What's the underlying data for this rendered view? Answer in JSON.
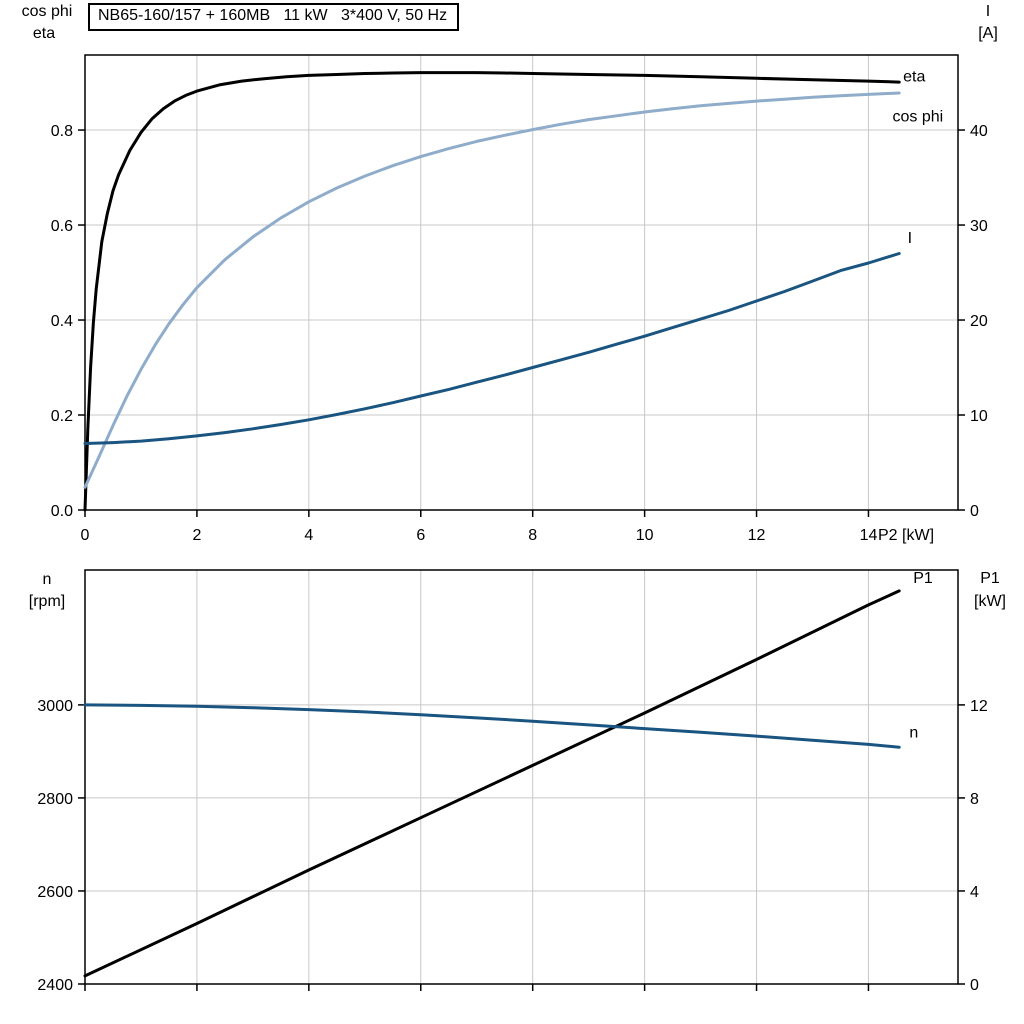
{
  "title_box": {
    "text": "NB65-160/157 + 160MB   11 kW   3*400 V, 50 Hz"
  },
  "colors": {
    "background": "#ffffff",
    "grid": "#c8c8c8",
    "axis": "#000000",
    "eta": "#000000",
    "cos_phi": "#8faccb",
    "current": "#1a5480",
    "p1": "#000000",
    "n": "#1a5480"
  },
  "chart_data": [
    {
      "type": "line",
      "name": "efficiency-cosphi-current",
      "title": "NB65-160/157 + 160MB   11 kW   3*400 V, 50 Hz",
      "x_axis": {
        "label": "P2 [kW]",
        "range": [
          0,
          15.6
        ],
        "tick_values": [
          0,
          2,
          4,
          6,
          8,
          10,
          12,
          14
        ],
        "tick_labels": [
          "0",
          "2",
          "4",
          "6",
          "8",
          "10",
          "12",
          "14"
        ],
        "show_tick_labels": true
      },
      "left_axis": {
        "title_lines": [
          "cos phi",
          "eta"
        ],
        "range": [
          0,
          0.958
        ],
        "tick_values": [
          0,
          0.2,
          0.4,
          0.6,
          0.8
        ],
        "tick_labels": [
          "0.0",
          "0.2",
          "0.4",
          "0.6",
          "0.8"
        ]
      },
      "right_axis": {
        "title_lines": [
          "I",
          "[A]"
        ],
        "range": [
          0,
          47.9
        ],
        "tick_values": [
          0,
          10,
          20,
          30,
          40
        ],
        "tick_labels": [
          "0",
          "10",
          "20",
          "30",
          "40"
        ]
      },
      "grid": true,
      "series": [
        {
          "name": "eta",
          "axis": "left",
          "color": "#000000",
          "label": {
            "text": "eta",
            "x": 14.62,
            "y": 0.902
          },
          "points": [
            [
              0,
              0
            ],
            [
              0.05,
              0.17
            ],
            [
              0.1,
              0.3
            ],
            [
              0.15,
              0.395
            ],
            [
              0.2,
              0.465
            ],
            [
              0.3,
              0.565
            ],
            [
              0.4,
              0.625
            ],
            [
              0.5,
              0.672
            ],
            [
              0.6,
              0.706
            ],
            [
              0.8,
              0.757
            ],
            [
              1.0,
              0.795
            ],
            [
              1.2,
              0.824
            ],
            [
              1.4,
              0.845
            ],
            [
              1.6,
              0.861
            ],
            [
              1.8,
              0.873
            ],
            [
              2.0,
              0.882
            ],
            [
              2.4,
              0.895
            ],
            [
              2.8,
              0.903
            ],
            [
              3.2,
              0.908
            ],
            [
              3.6,
              0.912
            ],
            [
              4.0,
              0.915
            ],
            [
              4.5,
              0.917
            ],
            [
              5.0,
              0.919
            ],
            [
              5.5,
              0.92
            ],
            [
              6.0,
              0.921
            ],
            [
              6.5,
              0.921
            ],
            [
              7.0,
              0.921
            ],
            [
              7.5,
              0.92
            ],
            [
              8.0,
              0.919
            ],
            [
              9.0,
              0.917
            ],
            [
              10.0,
              0.915
            ],
            [
              11.0,
              0.912
            ],
            [
              12.0,
              0.909
            ],
            [
              13.0,
              0.906
            ],
            [
              14.0,
              0.903
            ],
            [
              14.55,
              0.901
            ]
          ]
        },
        {
          "name": "cos phi",
          "axis": "left",
          "color": "#8faccb",
          "label": {
            "text": "cos phi",
            "x": 14.43,
            "y": 0.818
          },
          "points": [
            [
              0,
              0.048
            ],
            [
              0.25,
              0.112
            ],
            [
              0.5,
              0.178
            ],
            [
              0.75,
              0.24
            ],
            [
              1.0,
              0.296
            ],
            [
              1.25,
              0.347
            ],
            [
              1.5,
              0.392
            ],
            [
              1.75,
              0.432
            ],
            [
              2.0,
              0.468
            ],
            [
              2.5,
              0.527
            ],
            [
              3.0,
              0.575
            ],
            [
              3.5,
              0.615
            ],
            [
              4.0,
              0.649
            ],
            [
              4.5,
              0.678
            ],
            [
              5.0,
              0.703
            ],
            [
              5.5,
              0.725
            ],
            [
              6.0,
              0.744
            ],
            [
              6.5,
              0.761
            ],
            [
              7.0,
              0.776
            ],
            [
              7.5,
              0.789
            ],
            [
              8.0,
              0.801
            ],
            [
              8.5,
              0.812
            ],
            [
              9.0,
              0.822
            ],
            [
              9.5,
              0.83
            ],
            [
              10.0,
              0.838
            ],
            [
              10.5,
              0.845
            ],
            [
              11.0,
              0.851
            ],
            [
              11.5,
              0.856
            ],
            [
              12.0,
              0.861
            ],
            [
              12.5,
              0.865
            ],
            [
              13.0,
              0.869
            ],
            [
              13.5,
              0.872
            ],
            [
              14.0,
              0.875
            ],
            [
              14.55,
              0.878
            ]
          ]
        },
        {
          "name": "I",
          "axis": "right",
          "color": "#1a5480",
          "label": {
            "text": "I",
            "x": 14.7,
            "y": 28.1
          },
          "points": [
            [
              0,
              7.0
            ],
            [
              0.5,
              7.1
            ],
            [
              1,
              7.25
            ],
            [
              1.5,
              7.5
            ],
            [
              2,
              7.8
            ],
            [
              2.5,
              8.15
            ],
            [
              3,
              8.55
            ],
            [
              3.5,
              9.0
            ],
            [
              4,
              9.5
            ],
            [
              4.5,
              10.05
            ],
            [
              5,
              10.65
            ],
            [
              5.5,
              11.3
            ],
            [
              6,
              12.0
            ],
            [
              6.5,
              12.7
            ],
            [
              7,
              13.45
            ],
            [
              7.5,
              14.2
            ],
            [
              8,
              15.0
            ],
            [
              8.5,
              15.8
            ],
            [
              9,
              16.6
            ],
            [
              9.5,
              17.45
            ],
            [
              10,
              18.3
            ],
            [
              10.5,
              19.2
            ],
            [
              11,
              20.1
            ],
            [
              11.5,
              21.0
            ],
            [
              12,
              22.0
            ],
            [
              12.5,
              23.0
            ],
            [
              13,
              24.1
            ],
            [
              13.5,
              25.2
            ],
            [
              14,
              26.0
            ],
            [
              14.55,
              27.0
            ]
          ]
        }
      ]
    },
    {
      "type": "line",
      "name": "speed-power",
      "x_axis": {
        "label": "",
        "range": [
          0,
          15.6
        ],
        "tick_values": [
          0,
          2,
          4,
          6,
          8,
          10,
          12,
          14
        ],
        "tick_labels": [
          "0",
          "2",
          "4",
          "6",
          "8",
          "10",
          "12",
          "14"
        ],
        "show_tick_labels": false
      },
      "left_axis": {
        "title_lines": [
          "n",
          "[rpm]"
        ],
        "range": [
          2400,
          3290
        ],
        "tick_values": [
          2400,
          2600,
          2800,
          3000
        ],
        "tick_labels": [
          "2400",
          "2600",
          "2800",
          "3000"
        ]
      },
      "right_axis": {
        "title_lines": [
          "P1",
          "[kW]"
        ],
        "range": [
          0,
          17.8
        ],
        "tick_values": [
          0,
          4,
          8,
          12
        ],
        "tick_labels": [
          "0",
          "4",
          "8",
          "12"
        ]
      },
      "grid": true,
      "series": [
        {
          "name": "P1",
          "axis": "right",
          "color": "#000000",
          "label": {
            "text": "P1",
            "x": 14.8,
            "y": 17.25
          },
          "points": [
            [
              0,
              0.35
            ],
            [
              2,
              2.6
            ],
            [
              4,
              4.9
            ],
            [
              6,
              7.15
            ],
            [
              8,
              9.4
            ],
            [
              10,
              11.65
            ],
            [
              12,
              13.95
            ],
            [
              14,
              16.3
            ],
            [
              14.55,
              16.9
            ]
          ]
        },
        {
          "name": "n",
          "axis": "left",
          "color": "#1a5480",
          "label": {
            "text": "n",
            "x": 14.73,
            "y": 2930
          },
          "points": [
            [
              0,
              3000
            ],
            [
              1,
              2999
            ],
            [
              2,
              2997
            ],
            [
              3,
              2994
            ],
            [
              4,
              2990
            ],
            [
              5,
              2985
            ],
            [
              6,
              2979
            ],
            [
              7,
              2972
            ],
            [
              8,
              2965
            ],
            [
              9,
              2957
            ],
            [
              10,
              2949
            ],
            [
              11,
              2941
            ],
            [
              12,
              2933
            ],
            [
              13,
              2924
            ],
            [
              14,
              2915
            ],
            [
              14.55,
              2909
            ]
          ]
        }
      ]
    }
  ]
}
